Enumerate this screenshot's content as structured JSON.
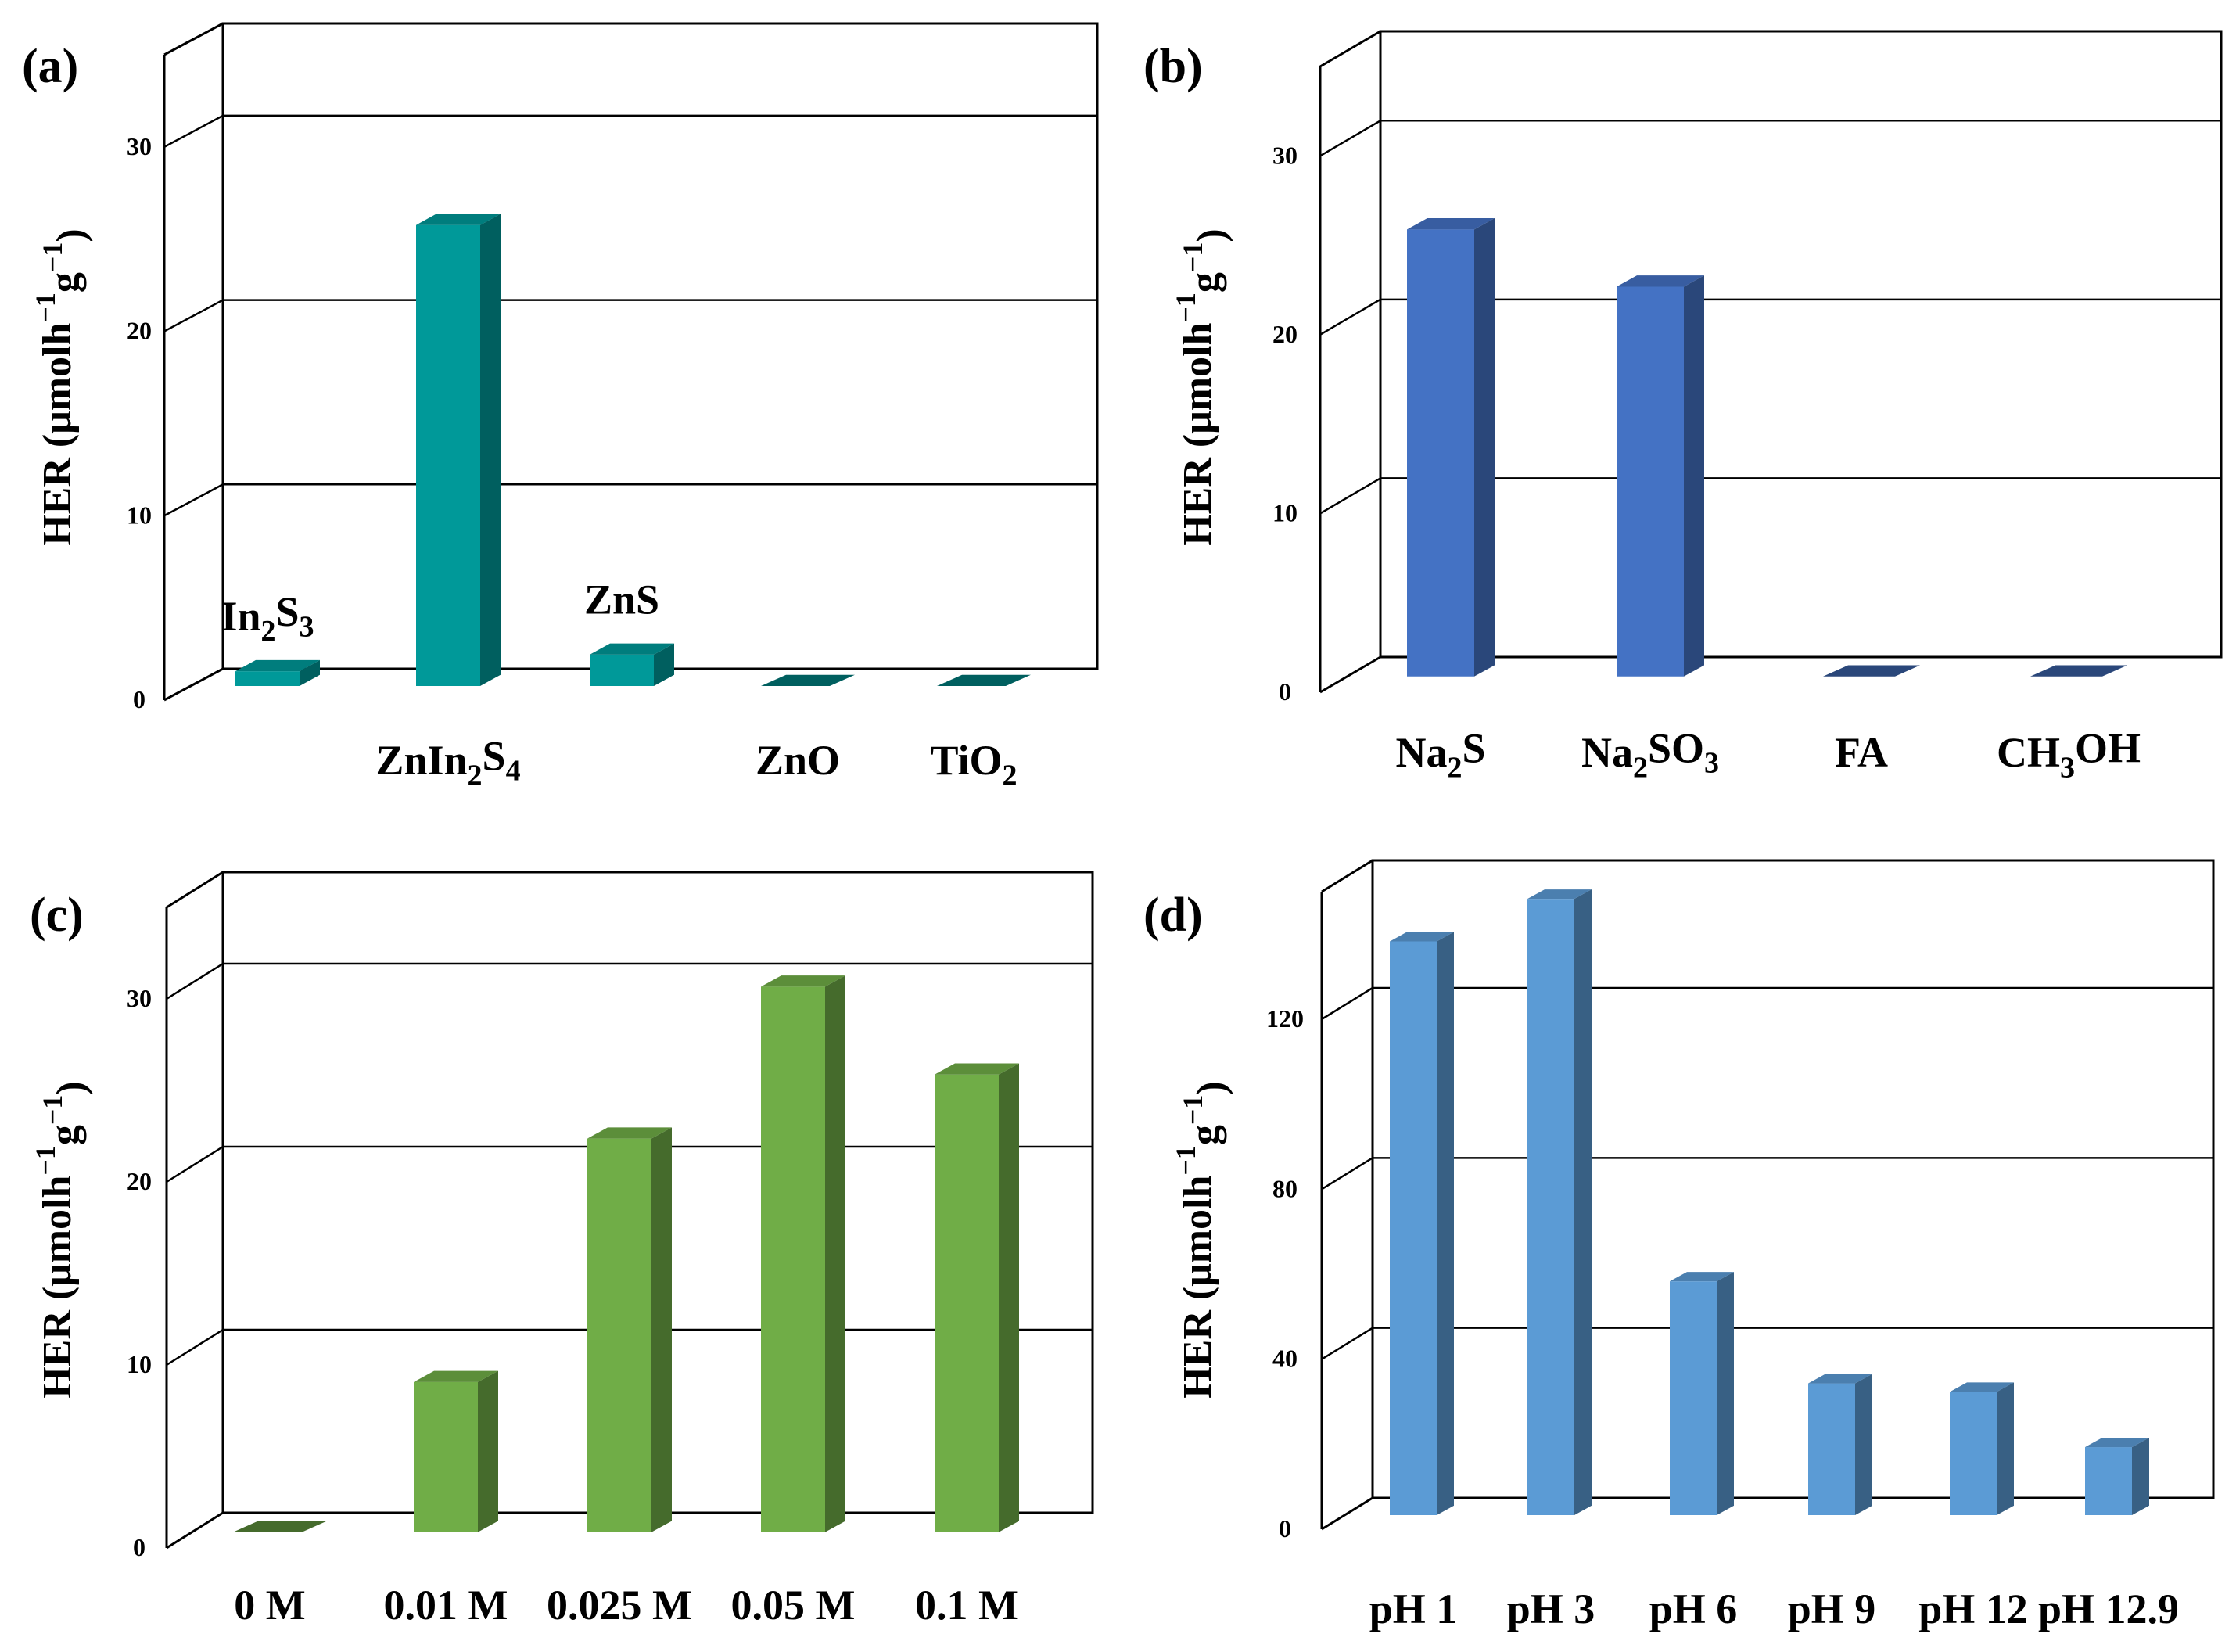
{
  "figure": {
    "y_axis_label": "HER (μmolh",
    "y_axis_unit_sup": "−1",
    "y_axis_mid": "g",
    "y_axis_end": ")"
  },
  "chart_data": [
    {
      "type": "bar",
      "panel": "(a)",
      "color": "#009999",
      "categories": [
        {
          "label": [
            [
              "In",
              ""
            ],
            [
              "2",
              "sub"
            ],
            [
              "S",
              ""
            ],
            [
              "3",
              "sub"
            ]
          ],
          "label_position": "above"
        },
        {
          "label": [
            [
              "ZnIn",
              ""
            ],
            [
              "2",
              "sub"
            ],
            [
              "S",
              ""
            ],
            [
              "4",
              "sub"
            ]
          ],
          "label_position": "below"
        },
        {
          "label": [
            [
              "ZnS",
              ""
            ]
          ],
          "label_position": "above"
        },
        {
          "label": [
            [
              "ZnO",
              ""
            ]
          ],
          "label_position": "below"
        },
        {
          "label": [
            [
              "TiO",
              ""
            ],
            [
              "2",
              "sub"
            ]
          ],
          "label_position": "below"
        }
      ],
      "values": [
        0.8,
        25,
        1.7,
        0.1,
        0.1
      ],
      "ylim": [
        0,
        35
      ],
      "yticks": [
        0,
        10,
        20,
        30
      ],
      "gridlines": [
        10,
        20,
        30
      ],
      "ylabel": "HER (μmolh−1g−1)"
    },
    {
      "type": "bar",
      "panel": "(b)",
      "color": "#4472C4",
      "categories": [
        {
          "label": [
            [
              "Na",
              ""
            ],
            [
              "2",
              "sub"
            ],
            [
              "S",
              ""
            ]
          ],
          "label_position": "below"
        },
        {
          "label": [
            [
              "Na",
              ""
            ],
            [
              "2",
              "sub"
            ],
            [
              "SO",
              ""
            ],
            [
              "3",
              "sub"
            ]
          ],
          "label_position": "below"
        },
        {
          "label": [
            [
              "FA",
              ""
            ]
          ],
          "label_position": "below"
        },
        {
          "label": [
            [
              "CH",
              ""
            ],
            [
              "3",
              "sub"
            ],
            [
              "OH",
              ""
            ]
          ],
          "label_position": "below"
        }
      ],
      "values": [
        25,
        21.8,
        0.1,
        0.1
      ],
      "ylim": [
        0,
        35
      ],
      "yticks": [
        0,
        10,
        20,
        30
      ],
      "gridlines": [
        10,
        20,
        30
      ],
      "ylabel": "HER (μmolh−1g−1)"
    },
    {
      "type": "bar",
      "panel": "(c)",
      "color": "#70AD47",
      "categories": [
        {
          "label": [
            [
              "0 M",
              ""
            ]
          ],
          "label_position": "below"
        },
        {
          "label": [
            [
              "0.01 M",
              ""
            ]
          ],
          "label_position": "below"
        },
        {
          "label": [
            [
              "0.025 M",
              ""
            ]
          ],
          "label_position": "below"
        },
        {
          "label": [
            [
              "0.05 M",
              ""
            ]
          ],
          "label_position": "below"
        },
        {
          "label": [
            [
              "0.1 M",
              ""
            ]
          ],
          "label_position": "below"
        }
      ],
      "values": [
        0.1,
        8.2,
        21.5,
        29.8,
        25
      ],
      "ylim": [
        0,
        35
      ],
      "yticks": [
        0,
        10,
        20,
        30
      ],
      "gridlines": [
        10,
        20,
        30
      ],
      "ylabel": "HER (μmolh−1g−1)"
    },
    {
      "type": "bar",
      "panel": "(d)",
      "color": "#5B9BD5",
      "categories": [
        {
          "label": [
            [
              "pH 1",
              ""
            ]
          ],
          "label_position": "below"
        },
        {
          "label": [
            [
              "pH 3",
              ""
            ]
          ],
          "label_position": "below"
        },
        {
          "label": [
            [
              "pH 6",
              ""
            ]
          ],
          "label_position": "below"
        },
        {
          "label": [
            [
              "pH 9",
              ""
            ]
          ],
          "label_position": "below"
        },
        {
          "label": [
            [
              "pH 12",
              ""
            ]
          ],
          "label_position": "below"
        },
        {
          "label": [
            [
              "pH 12.9",
              ""
            ]
          ],
          "label_position": "below"
        }
      ],
      "values": [
        135,
        145,
        55,
        31,
        29,
        16
      ],
      "ylim": [
        0,
        150
      ],
      "yticks": [
        0,
        40,
        80,
        120
      ],
      "gridlines": [
        40,
        80,
        120
      ],
      "ylabel": "HER (μmolh−1g−1)"
    }
  ]
}
